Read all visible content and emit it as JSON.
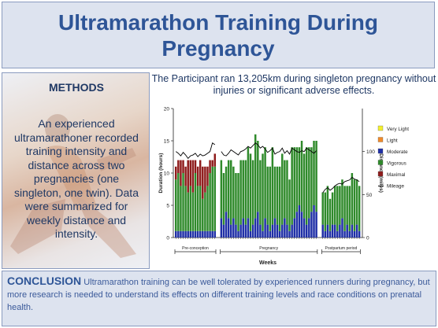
{
  "title": {
    "line1": "Ultramarathon Training During",
    "line2": "Pregnancy"
  },
  "methods": {
    "heading": "METHODS",
    "body": "An experienced ultramarathoner recorded training intensity and distance across two pregnancies (one singleton, one twin). Data were summarized for weekly distance and intensity."
  },
  "result": {
    "text": "The Participant ran 13,205km during singleton pregnancy without injuries or significant adverse effects."
  },
  "conclusion": {
    "heading": "CONCLUSION",
    "body": "Ultramarathon training can be well tolerated by experienced runners during pregnancy, but more research is needed to understand its effects on different training levels and race conditions on prenatal health."
  },
  "chart_data": {
    "type": "bar",
    "title": "",
    "xlabel": "Weeks",
    "ylabel_left": "Duration (hours)",
    "ylabel_right": "Distance (miles)",
    "ylim_left": [
      0,
      20
    ],
    "ylim_right": [
      0,
      150
    ],
    "yticks_left": [
      "0",
      "5",
      "10",
      "15",
      "20"
    ],
    "yticks_right": [
      "0",
      "50",
      "100"
    ],
    "legend_position": "right",
    "periods": [
      "Pre-conception",
      "Pregnancy",
      "Postpartum period"
    ],
    "period_lengths": [
      17,
      40,
      16
    ],
    "colors": {
      "Very Light": "#f2ef2e",
      "Light": "#f08a2a",
      "Moderate": "#1f2fa6",
      "Vigorous": "#2f8a2b",
      "Maximal": "#8e1b1b",
      "Mileage": "#000000"
    },
    "legend": [
      "Very Light",
      "Light",
      "Moderate",
      "Vigorous",
      "Maximal",
      "Mileage"
    ],
    "series": [
      {
        "name": "Maximal",
        "values": [
          2,
          2,
          4,
          2,
          3,
          5,
          4,
          5,
          2,
          3,
          4,
          5,
          4,
          3,
          2,
          1,
          2,
          0,
          0,
          0,
          0,
          0,
          0,
          0,
          0,
          0,
          0,
          0,
          0,
          0,
          0,
          0,
          0,
          0,
          0,
          0,
          0,
          0,
          0,
          0,
          0,
          0,
          0,
          0,
          0,
          0,
          0,
          0,
          0,
          0,
          0,
          0,
          0,
          0,
          0,
          0,
          0,
          0,
          0,
          0,
          0,
          0,
          0,
          0,
          0,
          0,
          0,
          0,
          0,
          0,
          0,
          0,
          0
        ]
      },
      {
        "name": "Vigorous",
        "values": [
          8,
          9,
          7,
          9,
          7,
          6,
          7,
          6,
          9,
          7,
          7,
          5,
          6,
          7,
          9,
          10,
          10,
          9,
          8,
          7,
          9,
          10,
          8,
          8,
          9,
          10,
          9,
          10,
          11,
          12,
          10,
          13,
          11,
          10,
          12,
          11,
          9,
          10,
          12,
          8,
          9,
          10,
          11,
          9,
          10,
          8,
          12,
          11,
          10,
          9,
          11,
          10,
          12,
          11,
          10,
          10,
          11,
          5,
          6,
          6,
          5,
          5,
          6,
          7,
          6,
          6,
          7,
          6,
          7,
          8,
          8,
          7,
          7
        ]
      },
      {
        "name": "Moderate",
        "values": [
          1,
          1,
          1,
          1,
          1,
          1,
          1,
          1,
          1,
          1,
          1,
          1,
          1,
          1,
          1,
          1,
          1,
          3,
          2,
          4,
          3,
          2,
          3,
          2,
          1,
          2,
          3,
          2,
          3,
          1,
          2,
          3,
          4,
          2,
          1,
          3,
          2,
          1,
          2,
          3,
          2,
          1,
          2,
          3,
          2,
          1,
          2,
          3,
          4,
          5,
          4,
          3,
          2,
          3,
          4,
          5,
          4,
          2,
          1,
          2,
          1,
          2,
          2,
          1,
          2,
          3,
          1,
          2,
          1,
          2,
          1,
          2,
          1
        ]
      },
      {
        "name": "Light",
        "values": [
          0,
          0,
          0,
          0,
          0,
          0,
          0,
          0,
          0,
          0,
          0,
          0,
          0,
          0,
          0,
          0,
          0,
          0,
          0,
          0,
          0,
          0,
          0,
          0,
          0,
          0,
          0,
          0,
          0,
          0,
          0,
          0,
          0,
          0,
          0,
          0,
          0,
          0,
          0,
          0,
          0,
          0,
          0,
          0,
          0,
          0,
          0,
          0,
          0,
          0,
          0,
          0,
          0,
          0,
          0,
          0,
          0,
          0,
          0,
          0,
          0,
          0,
          0,
          0,
          0,
          0,
          0,
          0,
          0,
          0,
          0,
          0,
          0
        ]
      },
      {
        "name": "Very Light",
        "values": [
          0,
          0,
          0,
          0,
          0,
          0,
          0,
          0,
          0,
          0,
          0,
          0,
          0,
          0,
          0,
          0,
          0,
          0,
          0,
          0,
          0,
          0,
          0,
          0,
          0,
          0,
          0,
          0,
          0,
          0,
          0,
          0,
          0,
          0,
          0,
          0,
          0,
          0,
          0,
          0,
          0,
          0,
          0,
          0,
          0,
          0,
          0,
          0,
          0,
          0,
          0,
          0,
          0,
          0,
          0,
          0,
          0,
          0,
          0,
          0,
          0,
          0,
          0,
          0,
          0,
          0,
          0,
          0,
          0,
          0,
          0,
          0,
          0
        ]
      },
      {
        "name": "Mileage",
        "values": [
          100,
          98,
          95,
          99,
          96,
          92,
          95,
          96,
          98,
          94,
          97,
          95,
          96,
          98,
          100,
          110,
          108,
          100,
          96,
          95,
          98,
          102,
          100,
          98,
          96,
          100,
          101,
          103,
          106,
          104,
          107,
          110,
          108,
          104,
          106,
          103,
          99,
          101,
          104,
          97,
          99,
          100,
          104,
          98,
          101,
          97,
          104,
          102,
          100,
          99,
          101,
          100,
          104,
          102,
          100,
          98,
          101,
          52,
          56,
          58,
          55,
          57,
          60,
          62,
          63,
          62,
          65,
          66,
          67,
          70,
          68,
          67,
          65
        ]
      }
    ]
  }
}
